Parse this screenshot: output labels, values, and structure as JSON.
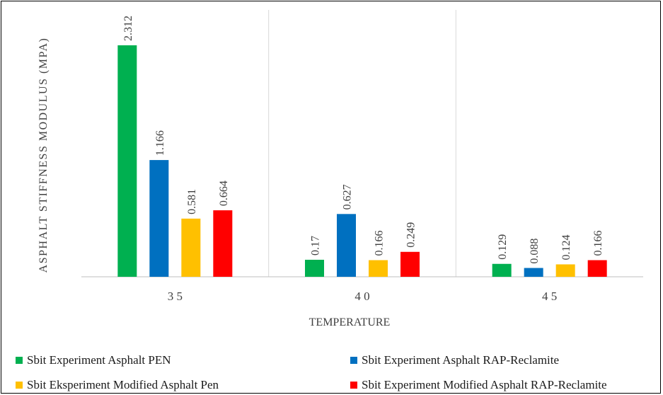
{
  "chart_data": {
    "type": "bar",
    "categories": [
      "3 5",
      "4 0",
      "4 5"
    ],
    "xlabel": "TEMPERATURE",
    "ylabel": "ASPHALT STIFFNESS MODULUS (MPA)",
    "ylim": [
      0,
      2.312
    ],
    "grid": "vertical separators only",
    "legend_position": "bottom",
    "series": [
      {
        "name": "Sbit Experiment Asphalt PEN",
        "color": "#00b050",
        "values": [
          2.312,
          0.17,
          0.129
        ],
        "labels": [
          "2.312",
          "0.17",
          "0.129"
        ]
      },
      {
        "name": "Sbit Experiment Asphalt  RAP-Reclamite",
        "color": "#0070c0",
        "values": [
          1.166,
          0.627,
          0.088
        ],
        "labels": [
          "1.166",
          "0.627",
          "0.088"
        ]
      },
      {
        "name": "Sbit Eksperiment Modified Asphalt  Pen",
        "color": "#ffc000",
        "values": [
          0.581,
          0.166,
          0.124
        ],
        "labels": [
          "0.581",
          "0.166",
          "0.124"
        ]
      },
      {
        "name": "Sbit Experiment Modified Asphalt RAP-Reclamite",
        "color": "#ff0000",
        "values": [
          0.664,
          0.249,
          0.166
        ],
        "labels": [
          "0.664",
          "0.249",
          "0.166"
        ]
      }
    ]
  }
}
